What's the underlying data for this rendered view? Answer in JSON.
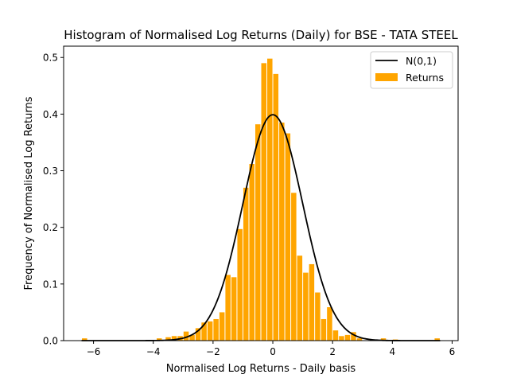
{
  "chart_data": {
    "type": "bar",
    "title": "Histogram of Normalised Log Returns (Daily) for BSE - TATA STEEL",
    "xlabel": "Normalised Log Returns - Daily basis",
    "ylabel": "Frequency of Normalised Log Returns",
    "xlim": [
      -7.0,
      6.2
    ],
    "ylim": [
      0.0,
      0.52
    ],
    "x_ticks": [
      -6,
      -4,
      -2,
      0,
      2,
      4,
      6
    ],
    "y_ticks": [
      0.0,
      0.1,
      0.2,
      0.3,
      0.4,
      0.5
    ],
    "x_tick_labels": [
      "−6",
      "−4",
      "−2",
      "0",
      "2",
      "4",
      "6"
    ],
    "y_tick_labels": [
      "0.0",
      "0.1",
      "0.2",
      "0.3",
      "0.4",
      "0.5"
    ],
    "grid": false,
    "legend_position": "top-right",
    "bin_width": 0.2,
    "series": [
      {
        "name": "Returns",
        "kind": "histogram",
        "color": "#FFA500",
        "bin_starts": [
          -6.4,
          -3.9,
          -3.6,
          -3.4,
          -3.2,
          -3.0,
          -2.8,
          -2.6,
          -2.4,
          -2.2,
          -2.0,
          -1.8,
          -1.6,
          -1.4,
          -1.2,
          -1.0,
          -0.8,
          -0.6,
          -0.4,
          -0.2,
          0.0,
          0.2,
          0.4,
          0.6,
          0.8,
          1.0,
          1.2,
          1.4,
          1.6,
          1.8,
          2.0,
          2.2,
          2.4,
          2.6,
          2.8,
          3.6,
          4.0,
          5.4
        ],
        "values": [
          0.004,
          0.004,
          0.006,
          0.008,
          0.008,
          0.016,
          0.01,
          0.022,
          0.032,
          0.034,
          0.038,
          0.05,
          0.116,
          0.112,
          0.197,
          0.27,
          0.312,
          0.382,
          0.49,
          0.498,
          0.471,
          0.385,
          0.366,
          0.261,
          0.15,
          0.12,
          0.135,
          0.085,
          0.038,
          0.059,
          0.018,
          0.008,
          0.01,
          0.015,
          0.004,
          0.004,
          0.002,
          0.004
        ]
      },
      {
        "name": "N(0,1)",
        "kind": "line",
        "color": "#000000",
        "function": "normal_pdf",
        "mean": 0,
        "std": 1,
        "x_range": [
          -6.4,
          5.6
        ]
      }
    ]
  }
}
